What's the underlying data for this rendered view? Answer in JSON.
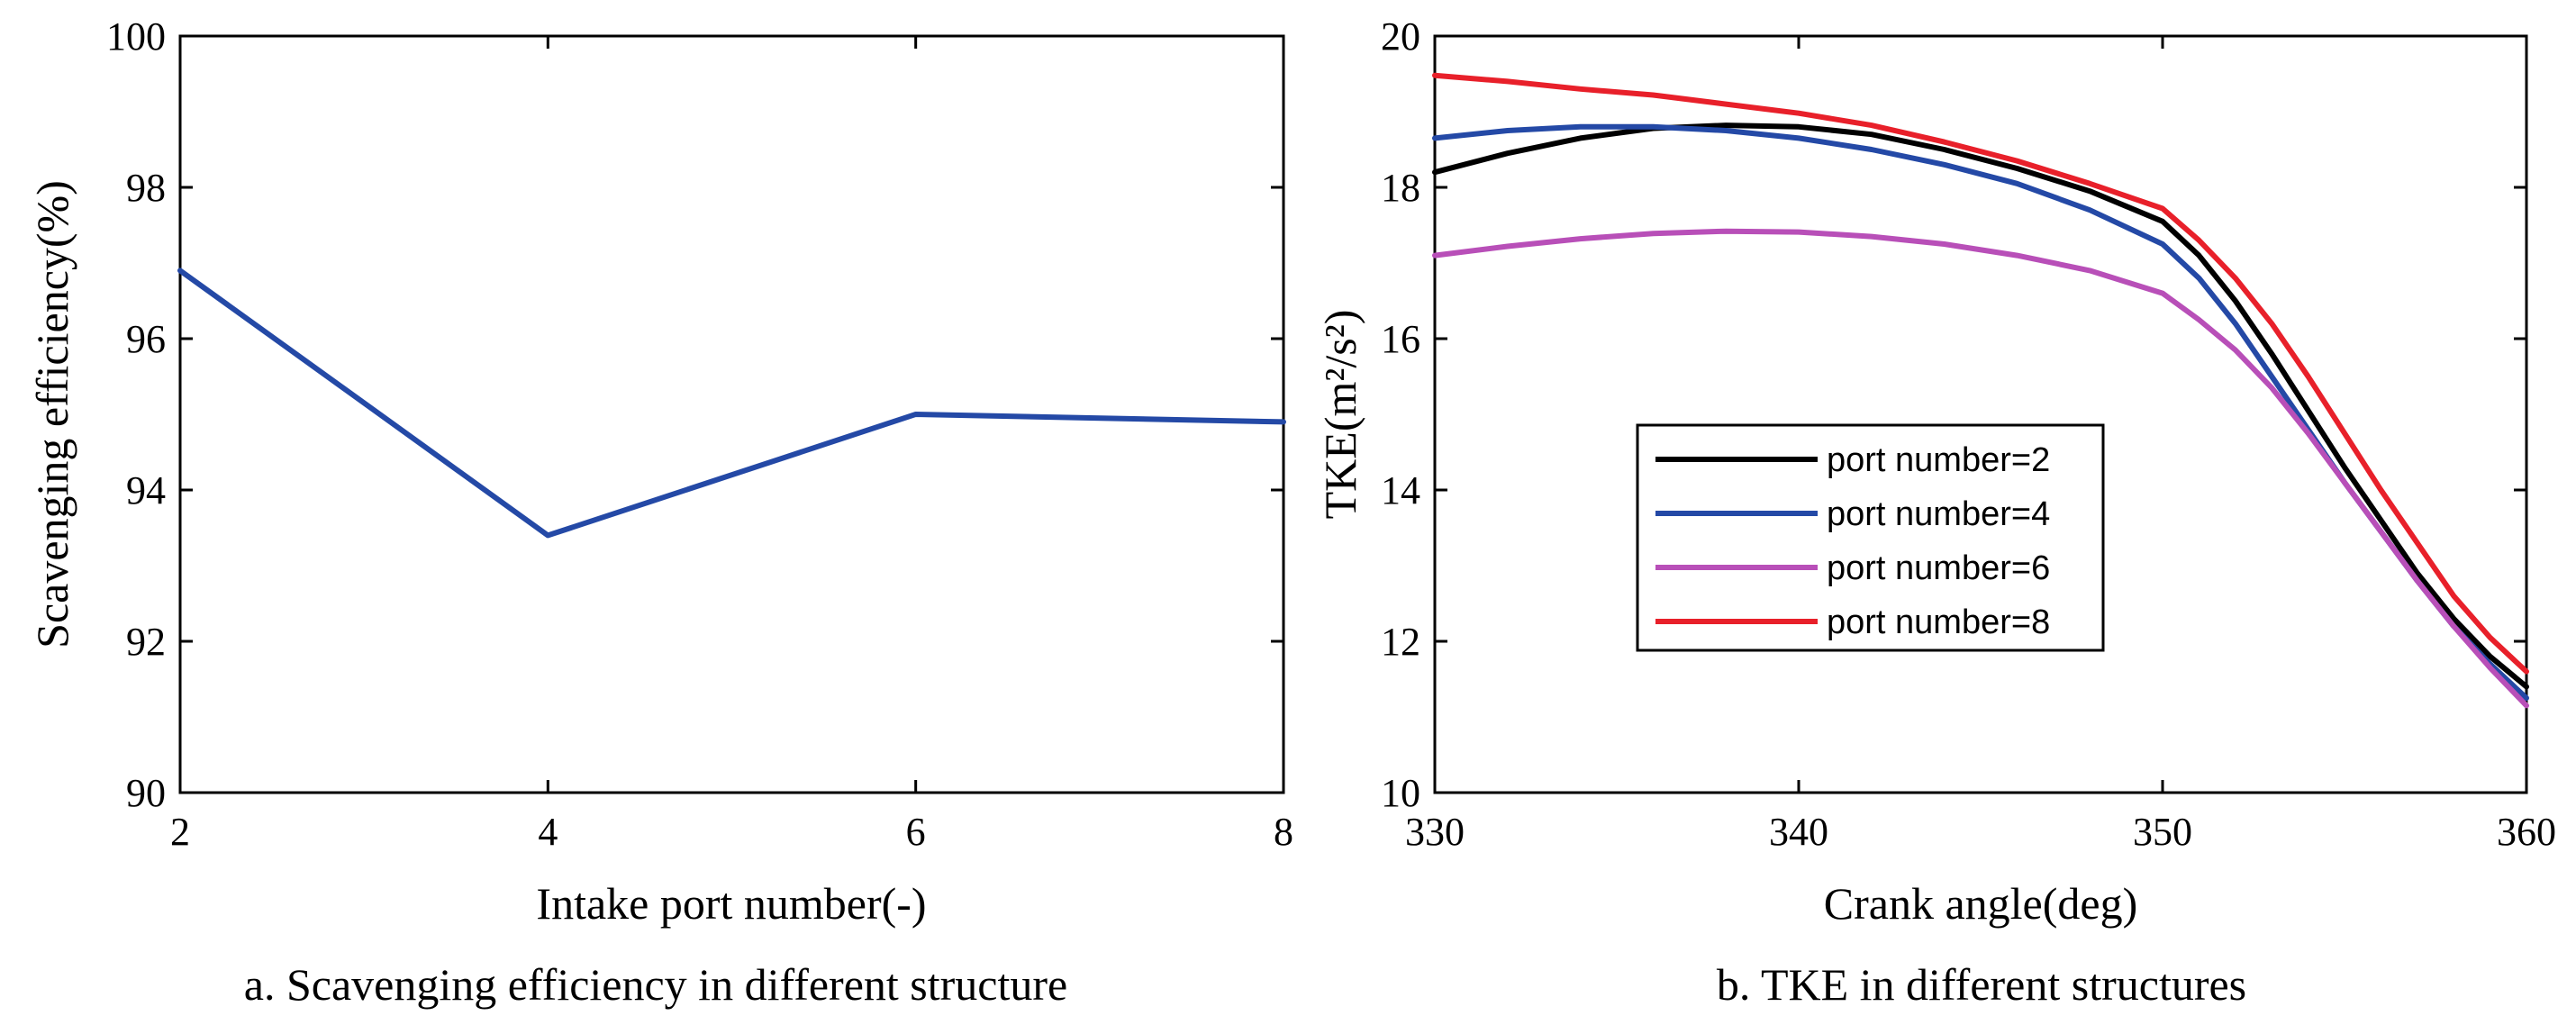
{
  "chart_data": [
    {
      "type": "line",
      "caption": "a. Scavenging efficiency in different structure",
      "xlabel": "Intake port number(-)",
      "ylabel": "Scavenging efficiency(%)",
      "xlim": [
        2,
        8
      ],
      "ylim": [
        90,
        100
      ],
      "xticks": [
        2,
        4,
        6,
        8
      ],
      "xtick_labels": [
        "2",
        "4",
        "6",
        "8"
      ],
      "yticks": [
        90,
        92,
        94,
        96,
        98,
        100
      ],
      "ytick_labels": [
        "90",
        "92",
        "94",
        "96",
        "98",
        "100"
      ],
      "grid": false,
      "series": [
        {
          "color": "#2449a6",
          "x": [
            2,
            4,
            6,
            8
          ],
          "y": [
            96.9,
            93.4,
            95.0,
            94.9
          ]
        }
      ]
    },
    {
      "type": "line",
      "caption": "b. TKE in different structures",
      "xlabel": "Crank angle(deg)",
      "ylabel": "TKE(m²/s²)",
      "xlim": [
        330,
        360
      ],
      "ylim": [
        10,
        20
      ],
      "xticks": [
        330,
        340,
        350,
        360
      ],
      "xtick_labels": [
        "330",
        "340",
        "350",
        "360"
      ],
      "yticks": [
        10,
        12,
        14,
        16,
        18,
        20
      ],
      "ytick_labels": [
        "10",
        "12",
        "14",
        "16",
        "18",
        "20"
      ],
      "grid": false,
      "legend_position": "center-left",
      "series": [
        {
          "name": "port number=2",
          "color": "#000000",
          "x": [
            330,
            332,
            334,
            336,
            338,
            340,
            342,
            344,
            346,
            348,
            350,
            351,
            352,
            353,
            354,
            355,
            356,
            357,
            358,
            359,
            360
          ],
          "y": [
            18.2,
            18.45,
            18.65,
            18.78,
            18.82,
            18.8,
            18.7,
            18.5,
            18.25,
            17.95,
            17.55,
            17.1,
            16.5,
            15.8,
            15.05,
            14.3,
            13.6,
            12.9,
            12.3,
            11.8,
            11.4
          ]
        },
        {
          "name": "port number=4",
          "color": "#2449a6",
          "x": [
            330,
            332,
            334,
            336,
            338,
            340,
            342,
            344,
            346,
            348,
            350,
            351,
            352,
            353,
            354,
            355,
            356,
            357,
            358,
            359,
            360
          ],
          "y": [
            18.65,
            18.75,
            18.8,
            18.8,
            18.75,
            18.65,
            18.5,
            18.3,
            18.05,
            17.7,
            17.25,
            16.8,
            16.2,
            15.5,
            14.8,
            14.1,
            13.45,
            12.8,
            12.2,
            11.7,
            11.25
          ]
        },
        {
          "name": "port number=6",
          "color": "#b84fb8",
          "x": [
            330,
            332,
            334,
            336,
            338,
            340,
            342,
            344,
            346,
            348,
            350,
            351,
            352,
            353,
            354,
            355,
            356,
            357,
            358,
            359,
            360
          ],
          "y": [
            17.1,
            17.22,
            17.32,
            17.39,
            17.42,
            17.41,
            17.35,
            17.25,
            17.1,
            16.9,
            16.6,
            16.25,
            15.85,
            15.35,
            14.75,
            14.1,
            13.45,
            12.8,
            12.2,
            11.65,
            11.15
          ]
        },
        {
          "name": "port number=8",
          "color": "#e8202a",
          "x": [
            330,
            332,
            334,
            336,
            338,
            340,
            342,
            344,
            346,
            348,
            350,
            351,
            352,
            353,
            354,
            355,
            356,
            357,
            358,
            359,
            360
          ],
          "y": [
            19.48,
            19.4,
            19.3,
            19.22,
            19.1,
            18.98,
            18.82,
            18.6,
            18.35,
            18.05,
            17.72,
            17.3,
            16.8,
            16.2,
            15.5,
            14.75,
            14.0,
            13.3,
            12.6,
            12.05,
            11.6
          ]
        }
      ]
    }
  ]
}
